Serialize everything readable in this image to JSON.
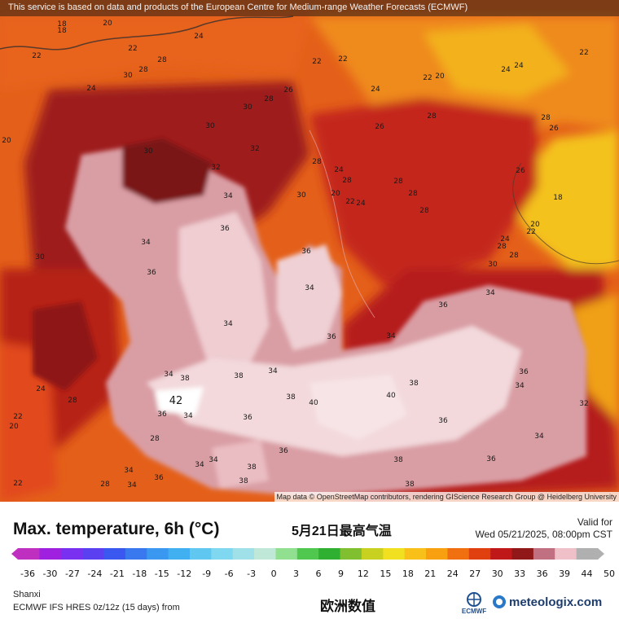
{
  "banner": {
    "text": "This service is based on data and products of the European Centre for Medium-range Weather Forecasts (ECMWF)"
  },
  "map": {
    "attribution": "Map data © OpenStreetMap contributors, rendering GIScience Research Group @ Heidelberg University",
    "temperature_labels": [
      "18",
      "20",
      "22",
      "24",
      "26",
      "28",
      "30",
      "32",
      "34",
      "36",
      "38",
      "40",
      "42"
    ],
    "peak_label": "42"
  },
  "footer": {
    "title": "Max. temperature, 6h (°C)",
    "title_cn": "5月21日最高气温",
    "valid_label": "Valid for",
    "valid_time": "Wed 05/21/2025, 08:00pm CST",
    "region": "Shanxi",
    "model": "ECMWF IFS HRES 0z/12z (15 days) from",
    "data_cn": "欧洲数值",
    "ecmwf_label": "ECMWF",
    "brand": "meteologix.com"
  },
  "color_scale": {
    "ticks": [
      "-36",
      "-30",
      "-27",
      "-24",
      "-21",
      "-18",
      "-15",
      "-12",
      "-9",
      "-6",
      "-3",
      "0",
      "3",
      "6",
      "9",
      "12",
      "15",
      "18",
      "21",
      "24",
      "27",
      "30",
      "33",
      "36",
      "39",
      "44",
      "50"
    ],
    "colors": [
      "#c030c0",
      "#a020e0",
      "#7a30f0",
      "#5a40f0",
      "#3a58f0",
      "#3a78f0",
      "#3a98f0",
      "#40b0f0",
      "#60c8f0",
      "#80d8f0",
      "#a0e0e8",
      "#c0e8d8",
      "#90e090",
      "#50c850",
      "#30b030",
      "#80c030",
      "#c8d020",
      "#f0e020",
      "#f8c018",
      "#f8a010",
      "#f07010",
      "#e04010",
      "#c01818",
      "#901818",
      "#c07080",
      "#f0c0c8",
      "#b0b0b0"
    ]
  },
  "colors": {
    "heat_dark": "#7a0d12",
    "heat_mid": "#b21d1b",
    "heat_orange": "#e85a12",
    "heat_yellow": "#f3b61b",
    "heat_pink": "#e7b3b7",
    "heat_light": "#f5dde0"
  }
}
